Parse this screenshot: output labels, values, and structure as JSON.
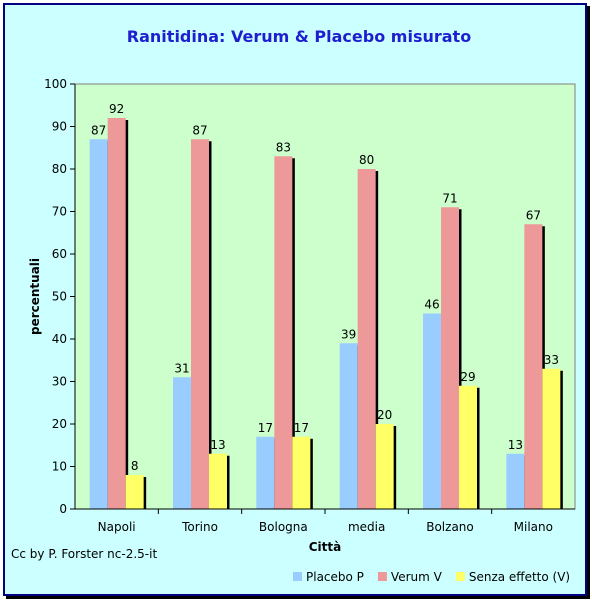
{
  "chart_data": {
    "type": "bar",
    "title": "Ranitidina: Verum & Placebo misurato",
    "xlabel": "Città",
    "ylabel": "percentuali",
    "ylim": [
      0,
      100
    ],
    "yticks": [
      0,
      10,
      20,
      30,
      40,
      50,
      60,
      70,
      80,
      90,
      100
    ],
    "categories": [
      "Napoli",
      "Torino",
      "Bologna",
      "media",
      "Bolzano",
      "Milano"
    ],
    "series": [
      {
        "name": "Placebo P",
        "color": "#99ccff",
        "values": [
          87,
          31,
          17,
          39,
          46,
          13
        ]
      },
      {
        "name": "Verum V",
        "color": "#ee9999",
        "values": [
          92,
          87,
          83,
          80,
          71,
          67
        ]
      },
      {
        "name": "Senza effetto (V)",
        "color": "#ffff66",
        "values": [
          8,
          13,
          17,
          20,
          29,
          33
        ]
      }
    ],
    "grid": false,
    "legend_position": "bottom-right",
    "plot_background": "#ccffcc",
    "annotation": "Cc by P. Forster nc-2.5-it"
  }
}
